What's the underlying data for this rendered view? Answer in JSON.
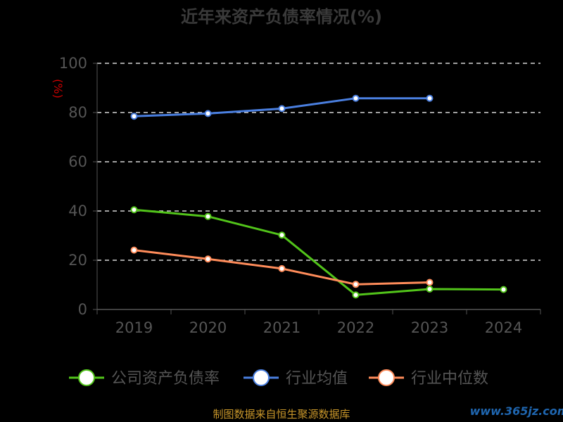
{
  "chart_data": {
    "type": "line",
    "title": "近年来资产负债率情况(%)",
    "ylabel": "(%)",
    "xlabel": "",
    "categories": [
      "2019",
      "2020",
      "2021",
      "2022",
      "2023",
      "2024"
    ],
    "ylim": [
      0,
      100
    ],
    "yticks": [
      0,
      20,
      40,
      60,
      80,
      100
    ],
    "grid": true,
    "legend_position": "bottom",
    "series": [
      {
        "name": "公司资产负债率",
        "color": "#52c41a",
        "values": [
          40.5,
          37.8,
          30.2,
          5.9,
          8.3,
          8.1
        ]
      },
      {
        "name": "行业均值",
        "color": "#4a7fe0",
        "values": [
          78.5,
          79.6,
          81.6,
          85.8,
          85.8,
          null
        ]
      },
      {
        "name": "行业中位数",
        "color": "#ff8c5a",
        "values": [
          24.1,
          20.5,
          16.6,
          10.2,
          11.0,
          null
        ]
      }
    ]
  },
  "footer": {
    "source": "制图数据来自恒生聚源数据库",
    "watermark": "www.365jz.com"
  }
}
